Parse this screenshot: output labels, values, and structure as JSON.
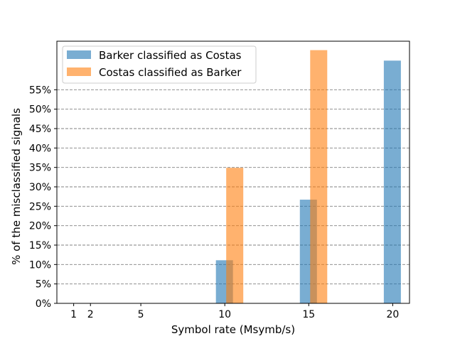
{
  "chart_data": {
    "type": "bar",
    "title": "",
    "xlabel": "Symbol rate (Msymb/s)",
    "ylabel": "% of the misclassified signals",
    "x_ticks": [
      1,
      2,
      5,
      10,
      15,
      20
    ],
    "y_ticks": [
      "0%",
      "5%",
      "10%",
      "15%",
      "20%",
      "25%",
      "30%",
      "35%",
      "40%",
      "45%",
      "50%",
      "55%"
    ],
    "ylim": [
      0,
      62.5
    ],
    "xlim": [
      0,
      21
    ],
    "grid": "horizontal dashed",
    "legend_position": "top-left",
    "series": [
      {
        "name": "Barker classified as Costas",
        "color": "#1f77b4",
        "opacity": 0.6,
        "x": [
          1,
          2,
          5,
          10,
          15,
          20
        ],
        "values": [
          0,
          0,
          0,
          11.1,
          26.7,
          62.5
        ]
      },
      {
        "name": "Costas classified as Barker",
        "color": "#ff7f0e",
        "opacity": 0.6,
        "x": [
          1,
          2,
          5,
          10,
          15,
          20
        ],
        "values": [
          0,
          0,
          0,
          34.9,
          65.2,
          0
        ]
      }
    ]
  }
}
